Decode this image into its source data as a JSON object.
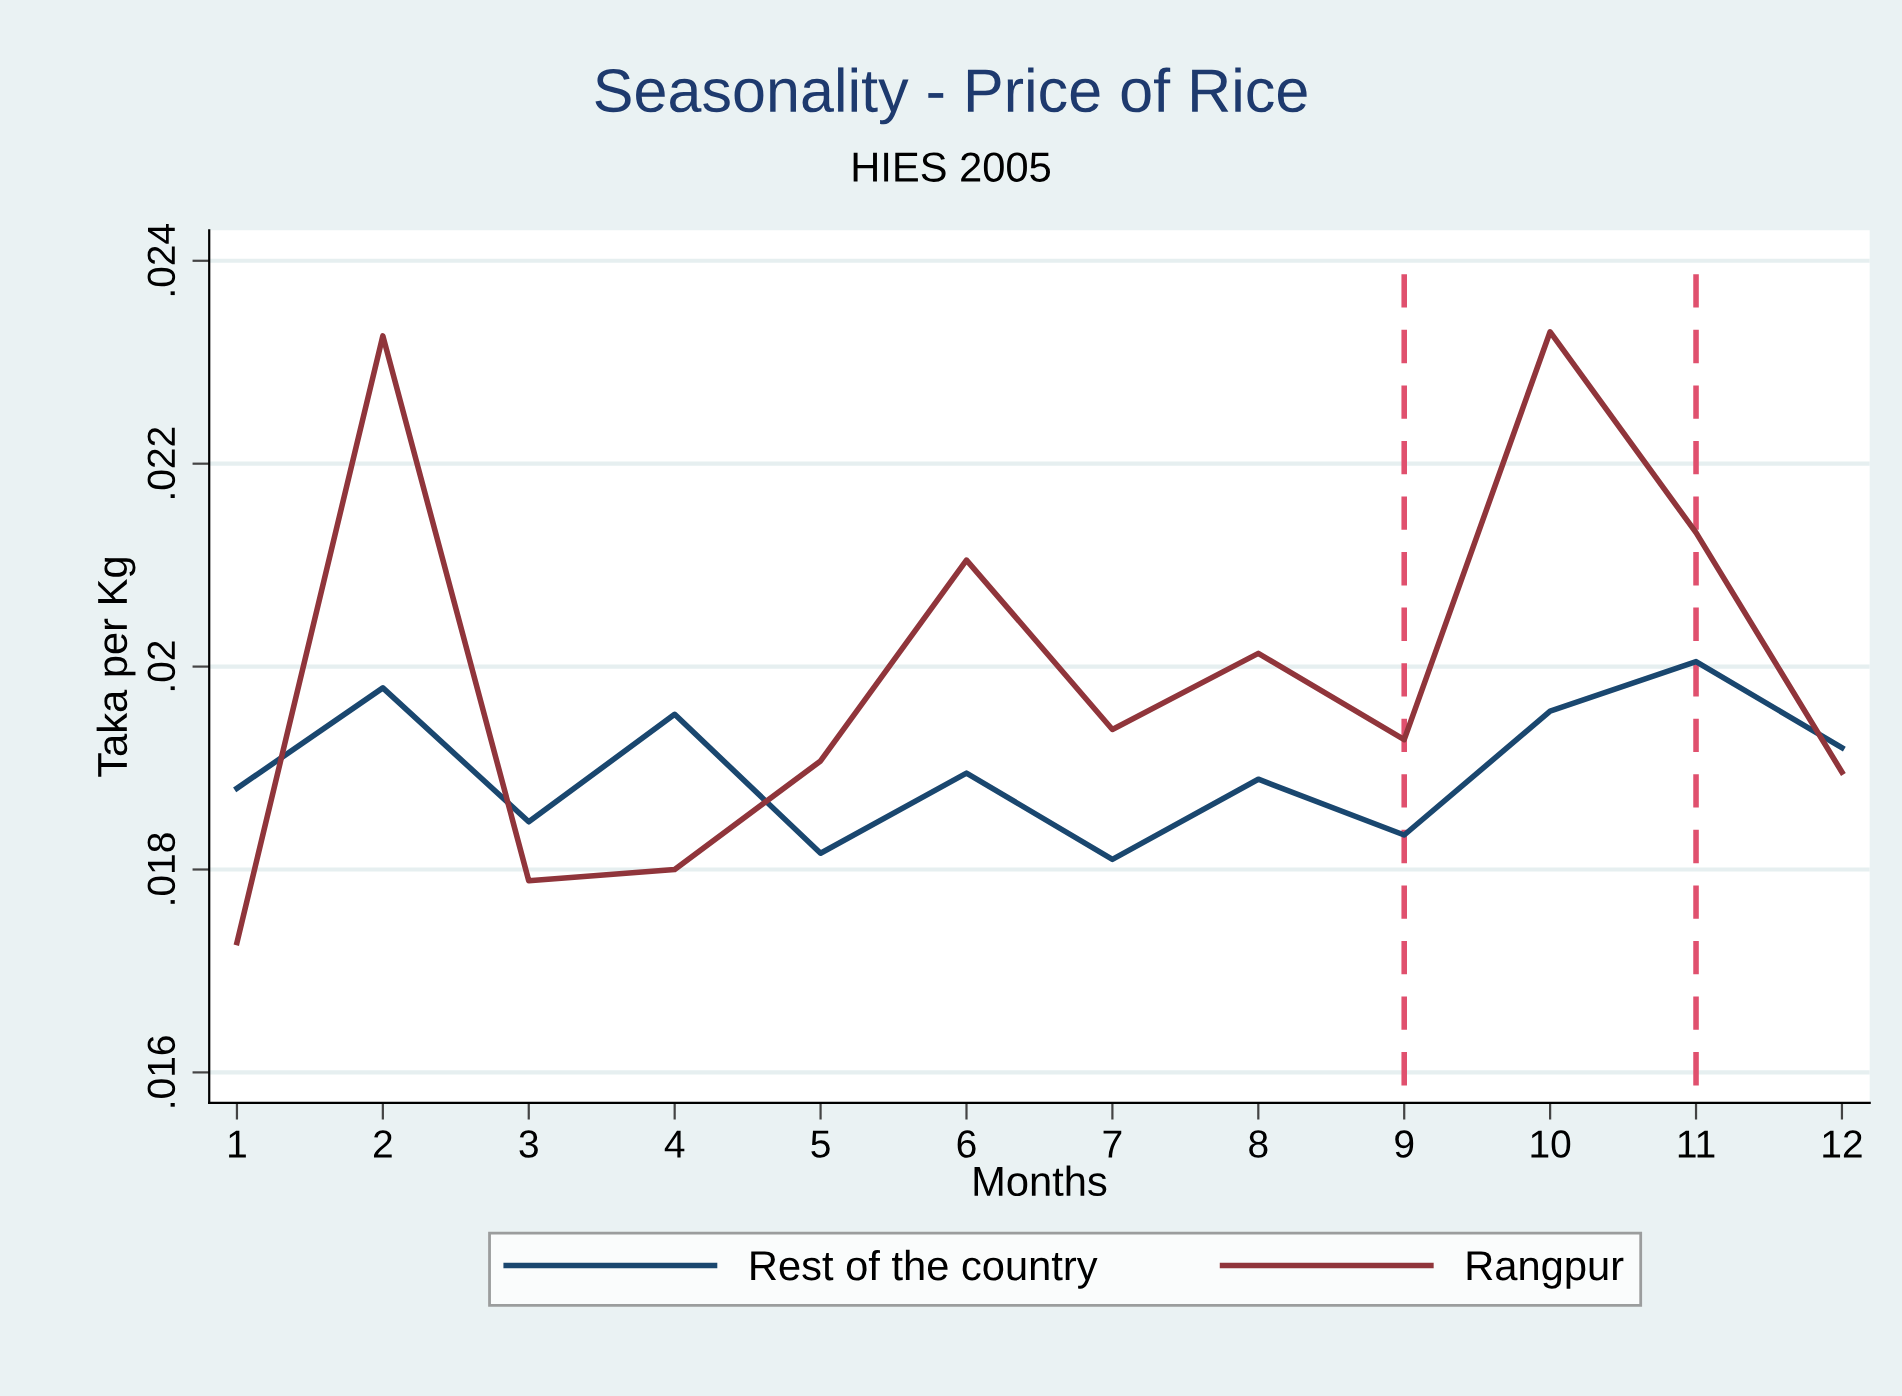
{
  "chart_data": {
    "type": "line",
    "title": "Seasonality - Price of Rice",
    "subtitle": "HIES 2005",
    "xlabel": "Months",
    "ylabel": "Taka per Kg",
    "x": [
      1,
      2,
      3,
      4,
      5,
      6,
      7,
      8,
      9,
      10,
      11,
      12
    ],
    "series": [
      {
        "name": "Rest of the country",
        "color": "#1a476f",
        "values": [
          0.0188,
          0.01979,
          0.01847,
          0.01953,
          0.01816,
          0.01895,
          0.0181,
          0.01889,
          0.01834,
          0.01956,
          0.02005,
          0.0192
        ]
      },
      {
        "name": "Rangpur",
        "color": "#90353b",
        "values": [
          0.01728,
          0.02326,
          0.01789,
          0.018,
          0.01907,
          0.02105,
          0.01938,
          0.02013,
          0.01928,
          0.0233,
          0.02132,
          0.01896
        ]
      }
    ],
    "xlim": [
      0.81,
      12.19
    ],
    "xticks": [
      1,
      2,
      3,
      4,
      5,
      6,
      7,
      8,
      9,
      10,
      11,
      12
    ],
    "ylim": [
      0.0157,
      0.0243
    ],
    "yticks": [
      {
        "value": 0.016,
        "label": ".016"
      },
      {
        "value": 0.018,
        "label": ".018"
      },
      {
        "value": 0.02,
        "label": ".02"
      },
      {
        "value": 0.022,
        "label": ".022"
      },
      {
        "value": 0.024,
        "label": ".024"
      }
    ],
    "ref_lines": [
      {
        "axis": "x",
        "value": 9,
        "color": "#e0506e",
        "line_style": "dashed"
      },
      {
        "axis": "x",
        "value": 11,
        "color": "#e0506e",
        "line_style": "dashed"
      }
    ],
    "grid": "y",
    "legend": "bottom",
    "marker": "none",
    "line_style": "solid"
  }
}
